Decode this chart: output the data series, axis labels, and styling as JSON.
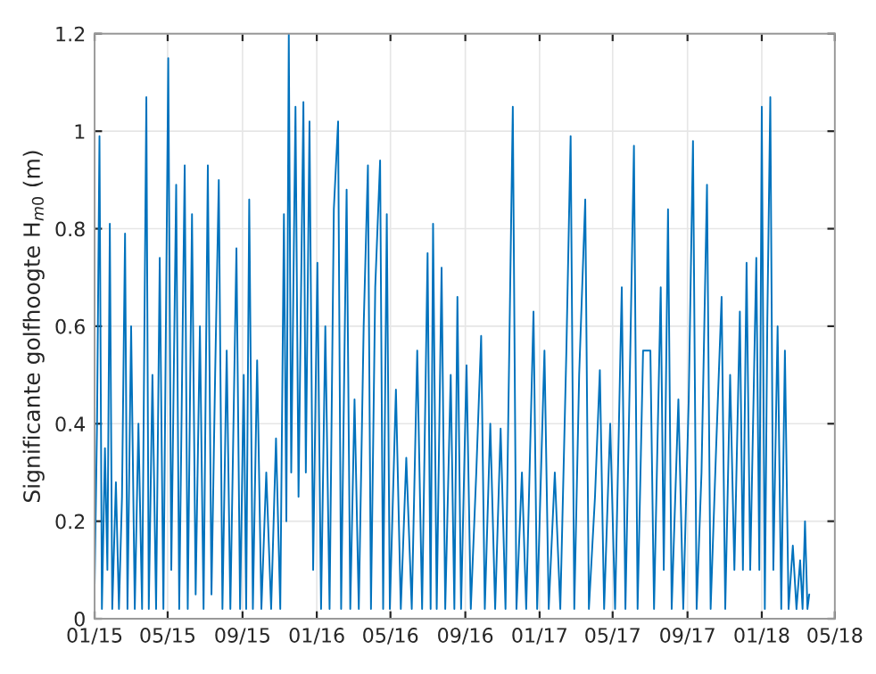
{
  "chart_data": {
    "type": "line",
    "ylabel": "Significante golfhoogte H$_{m0}$ (m)",
    "x": [
      "2015-01-01",
      "2015-01-05",
      "2015-01-09",
      "2015-01-13",
      "2015-01-18",
      "2015-01-22",
      "2015-01-26",
      "2015-01-30",
      "2015-02-05",
      "2015-02-10",
      "2015-02-15",
      "2015-02-20",
      "2015-02-24",
      "2015-03-02",
      "2015-03-08",
      "2015-03-14",
      "2015-03-20",
      "2015-03-27",
      "2015-03-31",
      "2015-04-06",
      "2015-04-12",
      "2015-04-18",
      "2015-04-24",
      "2015-05-02",
      "2015-05-07",
      "2015-05-15",
      "2015-05-20",
      "2015-05-29",
      "2015-06-03",
      "2015-06-10",
      "2015-06-16",
      "2015-06-23",
      "2015-06-29",
      "2015-07-06",
      "2015-07-12",
      "2015-07-18",
      "2015-07-24",
      "2015-07-30",
      "2015-08-06",
      "2015-08-12",
      "2015-08-22",
      "2015-08-28",
      "2015-09-03",
      "2015-09-07",
      "2015-09-12",
      "2015-09-18",
      "2015-09-25",
      "2015-10-02",
      "2015-10-10",
      "2015-10-18",
      "2015-10-26",
      "2015-11-02",
      "2015-11-08",
      "2015-11-12",
      "2015-11-16",
      "2015-11-20",
      "2015-11-27",
      "2015-12-02",
      "2015-12-10",
      "2015-12-14",
      "2015-12-20",
      "2015-12-26",
      "2016-01-02",
      "2016-01-08",
      "2016-01-15",
      "2016-01-22",
      "2016-01-29",
      "2016-02-05",
      "2016-02-10",
      "2016-02-19",
      "2016-02-25",
      "2016-03-03",
      "2016-03-10",
      "2016-03-18",
      "2016-03-25",
      "2016-03-30",
      "2016-04-06",
      "2016-04-14",
      "2016-04-19",
      "2016-04-25",
      "2016-04-30",
      "2016-05-10",
      "2016-05-18",
      "2016-05-27",
      "2016-06-05",
      "2016-06-14",
      "2016-06-22",
      "2016-07-01",
      "2016-07-06",
      "2016-07-10",
      "2016-07-16",
      "2016-07-24",
      "2016-07-30",
      "2016-08-08",
      "2016-08-14",
      "2016-08-19",
      "2016-08-25",
      "2016-09-03",
      "2016-09-10",
      "2016-09-19",
      "2016-09-27",
      "2016-10-03",
      "2016-10-12",
      "2016-10-20",
      "2016-10-29",
      "2016-11-06",
      "2016-11-18",
      "2016-11-24",
      "2016-12-03",
      "2016-12-10",
      "2016-12-22",
      "2016-12-28",
      "2017-01-09",
      "2017-01-16",
      "2017-01-26",
      "2017-02-04",
      "2017-02-14",
      "2017-02-21",
      "2017-02-27",
      "2017-03-07",
      "2017-03-17",
      "2017-03-23",
      "2017-04-02",
      "2017-04-10",
      "2017-04-17",
      "2017-04-27",
      "2017-05-05",
      "2017-05-16",
      "2017-05-22",
      "2017-05-30",
      "2017-06-05",
      "2017-06-11",
      "2017-06-20",
      "2017-07-02",
      "2017-07-08",
      "2017-07-19",
      "2017-07-24",
      "2017-07-31",
      "2017-08-06",
      "2017-08-17",
      "2017-08-25",
      "2017-09-03",
      "2017-09-10",
      "2017-09-16",
      "2017-09-24",
      "2017-10-03",
      "2017-10-09",
      "2017-10-18",
      "2017-10-27",
      "2017-11-02",
      "2017-11-10",
      "2017-11-17",
      "2017-11-26",
      "2017-12-01",
      "2017-12-07",
      "2017-12-13",
      "2017-12-23",
      "2017-12-28",
      "2018-01-01",
      "2018-01-06",
      "2018-01-10",
      "2018-01-15",
      "2018-01-20",
      "2018-01-27",
      "2018-02-02",
      "2018-02-08",
      "2018-02-14",
      "2018-02-21",
      "2018-02-27",
      "2018-03-05",
      "2018-03-09",
      "2018-03-13",
      "2018-03-17",
      "2018-03-20"
    ],
    "series": [
      {
        "color": "#0072bd",
        "values": [
          0.07,
          0.4,
          0.99,
          0.02,
          0.35,
          0.1,
          0.81,
          0.02,
          0.28,
          0.02,
          0.25,
          0.79,
          0.02,
          0.6,
          0.02,
          0.4,
          0.02,
          1.07,
          0.02,
          0.5,
          0.02,
          0.74,
          0.02,
          1.15,
          0.1,
          0.89,
          0.02,
          0.93,
          0.02,
          0.83,
          0.05,
          0.6,
          0.02,
          0.93,
          0.05,
          0.5,
          0.9,
          0.02,
          0.55,
          0.02,
          0.76,
          0.02,
          0.5,
          0.02,
          0.86,
          0.02,
          0.53,
          0.02,
          0.3,
          0.02,
          0.37,
          0.02,
          0.83,
          0.2,
          1.2,
          0.3,
          1.05,
          0.25,
          1.06,
          0.3,
          1.02,
          0.1,
          0.73,
          0.02,
          0.6,
          0.02,
          0.84,
          1.02,
          0.02,
          0.88,
          0.02,
          0.45,
          0.02,
          0.6,
          0.93,
          0.02,
          0.68,
          0.94,
          0.02,
          0.83,
          0.02,
          0.47,
          0.02,
          0.33,
          0.02,
          0.55,
          0.02,
          0.75,
          0.02,
          0.81,
          0.02,
          0.72,
          0.02,
          0.5,
          0.02,
          0.66,
          0.02,
          0.52,
          0.02,
          0.3,
          0.58,
          0.02,
          0.4,
          0.02,
          0.39,
          0.02,
          1.05,
          0.02,
          0.3,
          0.02,
          0.63,
          0.02,
          0.55,
          0.02,
          0.3,
          0.02,
          0.55,
          0.99,
          0.02,
          0.5,
          0.86,
          0.02,
          0.25,
          0.51,
          0.02,
          0.4,
          0.02,
          0.68,
          0.02,
          0.55,
          0.97,
          0.02,
          0.55,
          0.55,
          0.02,
          0.68,
          0.1,
          0.84,
          0.02,
          0.45,
          0.02,
          0.45,
          0.98,
          0.02,
          0.3,
          0.89,
          0.02,
          0.35,
          0.66,
          0.02,
          0.5,
          0.1,
          0.63,
          0.1,
          0.73,
          0.1,
          0.74,
          0.1,
          1.05,
          0.02,
          0.6,
          1.07,
          0.1,
          0.6,
          0.02,
          0.55,
          0.02,
          0.15,
          0.02,
          0.12,
          0.02,
          0.2,
          0.02,
          0.05
        ]
      }
    ],
    "xlim": [
      "2015-01-01",
      "2018-05-01"
    ],
    "xticks": [
      {
        "value": "2015-01-01",
        "label": "01/15"
      },
      {
        "value": "2015-05-01",
        "label": "05/15"
      },
      {
        "value": "2015-09-01",
        "label": "09/15"
      },
      {
        "value": "2016-01-01",
        "label": "01/16"
      },
      {
        "value": "2016-05-01",
        "label": "05/16"
      },
      {
        "value": "2016-09-01",
        "label": "09/16"
      },
      {
        "value": "2017-01-01",
        "label": "01/17"
      },
      {
        "value": "2017-05-01",
        "label": "05/17"
      },
      {
        "value": "2017-09-01",
        "label": "09/17"
      },
      {
        "value": "2018-01-01",
        "label": "01/18"
      },
      {
        "value": "2018-05-01",
        "label": "05/18"
      }
    ],
    "ylim": [
      0,
      1.2
    ],
    "yticks": [
      0,
      0.2,
      0.4,
      0.6,
      0.8,
      1,
      1.2
    ],
    "grid": true
  }
}
